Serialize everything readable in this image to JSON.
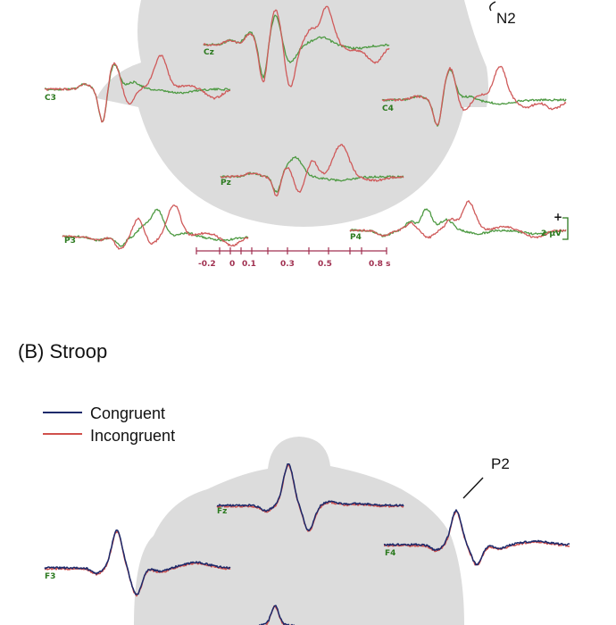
{
  "panel_a": {
    "peak_label": "N2",
    "channels": [
      "Cz",
      "C3",
      "C4",
      "Pz",
      "P3",
      "P4"
    ],
    "time_axis": {
      "ticks": [
        "-0.2",
        "0",
        "0.1",
        "0.3",
        "0.5",
        "0.8 s"
      ]
    },
    "scale_bar": {
      "sign": "+",
      "value": "2 µV"
    },
    "colors": {
      "series1": "#4e9a43",
      "series2": "#cf5a5a",
      "head": "#dcdcdc",
      "axis": "#a03050",
      "labels": "#2c7a1f"
    }
  },
  "panel_b": {
    "title": "(B) Stroop",
    "legend": [
      {
        "name": "Congruent",
        "color": "#1c2a6b"
      },
      {
        "name": "Incongruent",
        "color": "#d0504c"
      }
    ],
    "peak_label": "P2",
    "channels": [
      "Fz",
      "F3",
      "F4"
    ],
    "colors": {
      "head": "#dcdcdc",
      "labels": "#2c7a1f"
    }
  }
}
